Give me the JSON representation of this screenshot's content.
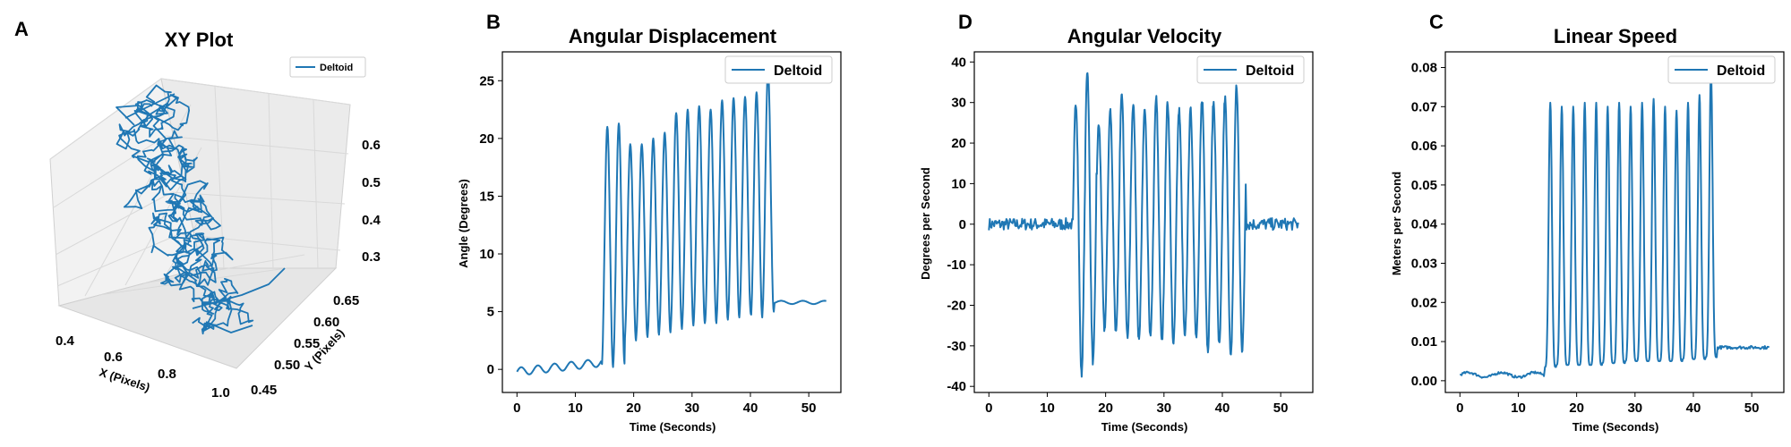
{
  "colors": {
    "series": "#1f77b4",
    "pane_left": "#f2f2f2",
    "pane_right": "#eaeaea",
    "pane_floor": "#e6e6e6",
    "grid": "#d9d9d9"
  },
  "chart_data": [
    {
      "panel": "A",
      "type": "scatter",
      "subtype": "3d-line",
      "title": "XY Plot",
      "xlabel": "X (Pixels)",
      "ylabel": "Y (Pixels)",
      "zlabel": "",
      "xlim": [
        0.33,
        1.05
      ],
      "ylim": [
        0.44,
        0.68
      ],
      "zlim": [
        0.26,
        0.65
      ],
      "x_ticks": [
        "0.4",
        "0.6",
        "0.8",
        "1.0"
      ],
      "y_ticks": [
        "0.45",
        "0.50",
        "0.55",
        "0.60",
        "0.65"
      ],
      "z_ticks": [
        "0.3",
        "0.4",
        "0.5",
        "0.6"
      ],
      "series": [
        {
          "name": "Deltoid",
          "trajectory": "tangled path from approx (0.45, 0.62, 0.60) down to approx (0.85, 0.50, 0.32)"
        }
      ],
      "legend": "top-right",
      "grid": true
    },
    {
      "panel": "B",
      "type": "line",
      "title": "Angular Displacement",
      "xlabel": "Time (Seconds)",
      "ylabel": "Angle (Degrees)",
      "xlim": [
        -2.5,
        55.5
      ],
      "ylim": [
        -2,
        27.5
      ],
      "x_ticks": [
        0,
        10,
        20,
        30,
        40,
        50
      ],
      "y_ticks": [
        0,
        5,
        10,
        15,
        20,
        25
      ],
      "series": [
        {
          "name": "Deltoid",
          "baseline_before": 0.5,
          "baseline_after": 5.8,
          "oscillation_start": 14.5,
          "oscillation_end": 44,
          "peaks": [
            21,
            21.3,
            19.5,
            19.5,
            20,
            20.5,
            22.2,
            22.5,
            22.8,
            22.5,
            23.3,
            23.5,
            23.6,
            24,
            25.8
          ],
          "troughs": [
            0.2,
            0.5,
            2.5,
            2.8,
            3,
            3.2,
            3.5,
            3.8,
            4,
            4,
            4.3,
            4.5,
            4.8,
            4.5,
            5
          ]
        }
      ],
      "legend": "top-right",
      "grid": false
    },
    {
      "panel": "D",
      "type": "line",
      "title": "Angular Velocity",
      "xlabel": "Time (Seconds)",
      "ylabel": "Degrees per Second",
      "xlim": [
        -2.5,
        55.5
      ],
      "ylim": [
        -41.5,
        42.5
      ],
      "x_ticks": [
        0,
        10,
        20,
        30,
        40,
        50
      ],
      "y_ticks": [
        -40,
        -30,
        -20,
        -10,
        0,
        10,
        20,
        30,
        40
      ],
      "series": [
        {
          "name": "Deltoid",
          "baseline": 0,
          "oscillation_start": 14.5,
          "oscillation_end": 44,
          "peaks": [
            30,
            38,
            24.5,
            28,
            33,
            30,
            28,
            31,
            30,
            28,
            28,
            31,
            30,
            31,
            34
          ],
          "troughs": [
            -37,
            -34,
            -26,
            -27,
            -28,
            -29,
            -28,
            -29,
            -30,
            -28,
            -28,
            -31,
            -30,
            -33,
            -31
          ]
        }
      ],
      "legend": "top-right",
      "grid": false
    },
    {
      "panel": "C",
      "type": "line",
      "title": "Linear Speed",
      "xlabel": "Time (Seconds)",
      "ylabel": "Meters per Second",
      "xlim": [
        -2.5,
        55.5
      ],
      "ylim": [
        -0.003,
        0.084
      ],
      "x_ticks": [
        0,
        10,
        20,
        30,
        40,
        50
      ],
      "y_ticks": [
        "0.00",
        "0.01",
        "0.02",
        "0.03",
        "0.04",
        "0.05",
        "0.06",
        "0.07",
        "0.08"
      ],
      "series": [
        {
          "name": "Deltoid",
          "baseline_before": 0.0015,
          "baseline_after": 0.0085,
          "oscillation_start": 14.5,
          "oscillation_end": 44,
          "peaks": [
            0.071,
            0.07,
            0.07,
            0.071,
            0.071,
            0.07,
            0.071,
            0.07,
            0.071,
            0.072,
            0.07,
            0.069,
            0.071,
            0.073,
            0.079
          ],
          "troughs": [
            0.0035,
            0.004,
            0.004,
            0.004,
            0.004,
            0.0045,
            0.0045,
            0.005,
            0.005,
            0.005,
            0.005,
            0.005,
            0.0055,
            0.0055,
            0.006
          ]
        }
      ],
      "legend": "top-right",
      "grid": false
    }
  ]
}
